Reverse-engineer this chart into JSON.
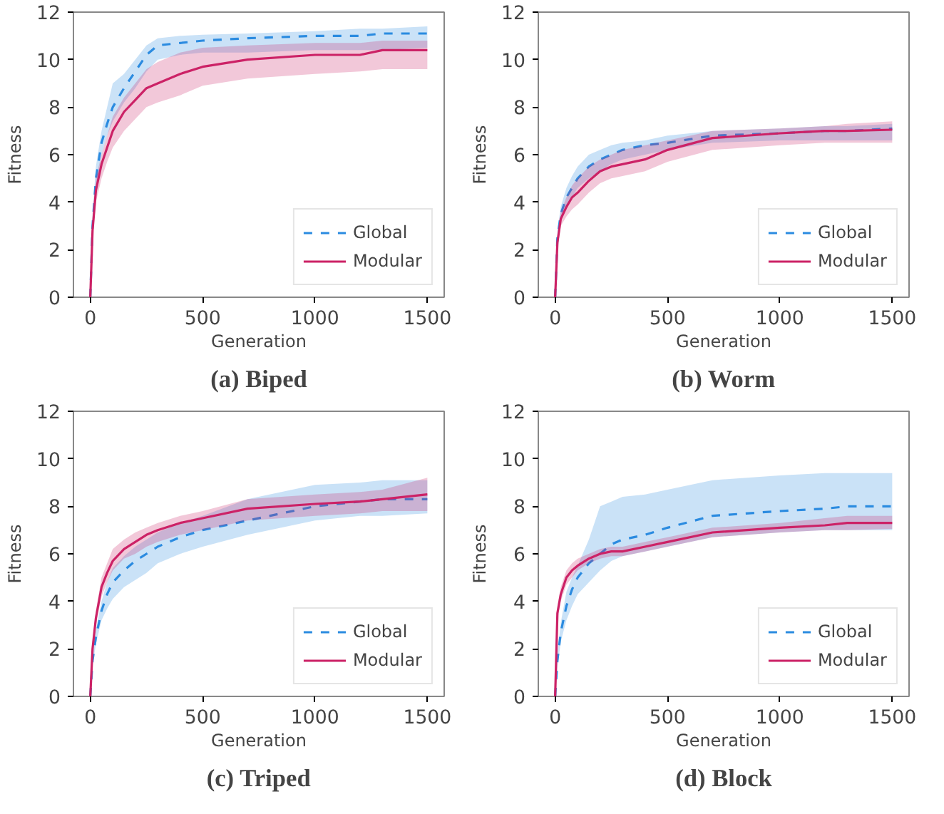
{
  "chart_data": [
    {
      "type": "line",
      "title": "(a) Biped",
      "xlabel": "Generation",
      "ylabel": "Fitness",
      "xlim": [
        -75,
        1575
      ],
      "ylim": [
        0,
        12
      ],
      "xticks": [
        0,
        500,
        1000,
        1500
      ],
      "yticks": [
        0,
        2,
        4,
        6,
        8,
        10,
        12
      ],
      "grid": false,
      "legend": "bottom right",
      "x": [
        0,
        10,
        25,
        50,
        75,
        100,
        150,
        200,
        250,
        300,
        400,
        500,
        700,
        1000,
        1200,
        1300,
        1500
      ],
      "series": [
        {
          "name": "Global",
          "color": "#2b8be0",
          "line_style": "dashed",
          "values": [
            0,
            3,
            5,
            6.5,
            7.3,
            8,
            8.8,
            9.5,
            10.2,
            10.6,
            10.7,
            10.8,
            10.9,
            11,
            11,
            11.1,
            11.1
          ],
          "lower": [
            0,
            2.5,
            4.5,
            6,
            6.8,
            7.4,
            8.2,
            8.8,
            9.5,
            10,
            10.2,
            10.3,
            10.3,
            10.4,
            10.4,
            10.4,
            10.5
          ],
          "upper": [
            0,
            3.5,
            5.5,
            7,
            8,
            9,
            9.4,
            10,
            10.6,
            10.9,
            11,
            11.05,
            11.1,
            11.2,
            11.3,
            11.3,
            11.4
          ]
        },
        {
          "name": "Modular",
          "color": "#cc2266",
          "line_style": "solid",
          "values": [
            0,
            2.8,
            4.5,
            5.6,
            6.3,
            7,
            7.8,
            8.3,
            8.8,
            9,
            9.4,
            9.7,
            10,
            10.2,
            10.2,
            10.4,
            10.4
          ],
          "lower": [
            0,
            2.5,
            4,
            5,
            5.7,
            6.3,
            7,
            7.5,
            8,
            8.2,
            8.5,
            8.9,
            9.2,
            9.4,
            9.5,
            9.6,
            9.6
          ],
          "upper": [
            0,
            3,
            5,
            6,
            6.8,
            7.6,
            8.4,
            9,
            9.6,
            9.9,
            10.3,
            10.5,
            10.6,
            10.7,
            10.7,
            10.8,
            10.8
          ]
        }
      ]
    },
    {
      "type": "line",
      "title": "(b) Worm",
      "xlabel": "Generation",
      "ylabel": "Fitness",
      "xlim": [
        -75,
        1575
      ],
      "ylim": [
        0,
        12
      ],
      "xticks": [
        0,
        500,
        1000,
        1500
      ],
      "yticks": [
        0,
        2,
        4,
        6,
        8,
        10,
        12
      ],
      "grid": false,
      "legend": "bottom right",
      "x": [
        0,
        10,
        25,
        50,
        75,
        100,
        150,
        200,
        250,
        300,
        400,
        500,
        700,
        1000,
        1200,
        1300,
        1500
      ],
      "series": [
        {
          "name": "Global",
          "color": "#2b8be0",
          "line_style": "dashed",
          "values": [
            0,
            2.5,
            3.5,
            4.2,
            4.6,
            5,
            5.5,
            5.8,
            6,
            6.2,
            6.4,
            6.5,
            6.8,
            6.9,
            7,
            7,
            7.1
          ],
          "lower": [
            0,
            2.3,
            3.2,
            3.8,
            4.2,
            4.6,
            5,
            5.3,
            5.6,
            5.8,
            6,
            6.2,
            6.5,
            6.6,
            6.6,
            6.6,
            6.6
          ],
          "upper": [
            0,
            2.8,
            3.8,
            4.6,
            5.1,
            5.5,
            6,
            6.2,
            6.4,
            6.5,
            6.6,
            6.8,
            7,
            7.1,
            7.2,
            7.2,
            7.3
          ]
        },
        {
          "name": "Modular",
          "color": "#cc2266",
          "line_style": "solid",
          "values": [
            0,
            2.3,
            3.3,
            3.8,
            4.2,
            4.4,
            4.9,
            5.3,
            5.5,
            5.6,
            5.8,
            6.2,
            6.7,
            6.9,
            7,
            7,
            7.05
          ],
          "lower": [
            0,
            2,
            3,
            3.4,
            3.7,
            3.9,
            4.4,
            4.8,
            5,
            5.1,
            5.3,
            5.7,
            6.2,
            6.4,
            6.5,
            6.5,
            6.5
          ],
          "upper": [
            0,
            2.5,
            3.6,
            4.2,
            4.7,
            5,
            5.5,
            5.8,
            6,
            6.2,
            6.4,
            6.6,
            7,
            7.1,
            7.2,
            7.3,
            7.4
          ]
        }
      ]
    },
    {
      "type": "line",
      "title": "(c) Triped",
      "xlabel": "Generation",
      "ylabel": "Fitness",
      "xlim": [
        -75,
        1575
      ],
      "ylim": [
        0,
        12
      ],
      "xticks": [
        0,
        500,
        1000,
        1500
      ],
      "yticks": [
        0,
        2,
        4,
        6,
        8,
        10,
        12
      ],
      "grid": false,
      "legend": "bottom right",
      "x": [
        0,
        10,
        25,
        50,
        75,
        100,
        150,
        200,
        250,
        300,
        400,
        500,
        700,
        1000,
        1200,
        1300,
        1500
      ],
      "series": [
        {
          "name": "Global",
          "color": "#2b8be0",
          "line_style": "dashed",
          "values": [
            0,
            1.5,
            2.5,
            3.6,
            4.3,
            4.8,
            5.3,
            5.7,
            6,
            6.3,
            6.7,
            7,
            7.4,
            8,
            8.2,
            8.3,
            8.3
          ],
          "lower": [
            0,
            1.3,
            2.2,
            3.2,
            3.7,
            4.1,
            4.6,
            4.9,
            5.2,
            5.6,
            6,
            6.3,
            6.8,
            7.4,
            7.6,
            7.6,
            7.7
          ],
          "upper": [
            0,
            1.8,
            2.8,
            4,
            4.8,
            5.4,
            5.9,
            6.3,
            6.6,
            6.9,
            7.3,
            7.6,
            8.3,
            8.9,
            9,
            9.1,
            9.1
          ]
        },
        {
          "name": "Modular",
          "color": "#cc2266",
          "line_style": "solid",
          "values": [
            0,
            2,
            3.3,
            4.6,
            5.2,
            5.7,
            6.2,
            6.5,
            6.8,
            7,
            7.3,
            7.5,
            7.9,
            8.1,
            8.2,
            8.3,
            8.5
          ],
          "lower": [
            0,
            1.7,
            3,
            4.2,
            4.8,
            5.3,
            5.8,
            6,
            6.3,
            6.5,
            6.8,
            7,
            7.4,
            7.6,
            7.7,
            7.8,
            7.8
          ],
          "upper": [
            0,
            2.3,
            3.6,
            5,
            5.6,
            6.2,
            6.6,
            6.9,
            7.1,
            7.3,
            7.6,
            7.8,
            8.3,
            8.5,
            8.6,
            8.7,
            9.2
          ]
        }
      ]
    },
    {
      "type": "line",
      "title": "(d) Block",
      "xlabel": "Generation",
      "ylabel": "Fitness",
      "xlim": [
        -75,
        1575
      ],
      "ylim": [
        0,
        12
      ],
      "xticks": [
        0,
        500,
        1000,
        1500
      ],
      "yticks": [
        0,
        2,
        4,
        6,
        8,
        10,
        12
      ],
      "grid": false,
      "legend": "bottom right",
      "x": [
        0,
        10,
        25,
        50,
        75,
        100,
        150,
        200,
        250,
        300,
        400,
        500,
        700,
        1000,
        1200,
        1300,
        1500
      ],
      "series": [
        {
          "name": "Global",
          "color": "#2b8be0",
          "line_style": "dashed",
          "values": [
            0,
            1.5,
            2.7,
            3.8,
            4.5,
            5,
            5.6,
            6,
            6.4,
            6.6,
            6.8,
            7.1,
            7.6,
            7.8,
            7.9,
            8,
            8
          ],
          "lower": [
            0,
            1.2,
            2.3,
            3.2,
            3.8,
            4.3,
            4.8,
            5.3,
            5.7,
            5.9,
            6.1,
            6.3,
            6.7,
            6.9,
            7,
            7,
            7
          ],
          "upper": [
            0,
            1.8,
            3.1,
            4.4,
            5,
            5.5,
            6.6,
            8,
            8.2,
            8.4,
            8.5,
            8.7,
            9.1,
            9.3,
            9.4,
            9.4,
            9.4
          ]
        },
        {
          "name": "Modular",
          "color": "#cc2266",
          "line_style": "solid",
          "values": [
            0,
            3.5,
            4.3,
            5,
            5.3,
            5.5,
            5.8,
            6,
            6.1,
            6.1,
            6.3,
            6.5,
            6.9,
            7.1,
            7.2,
            7.3,
            7.3
          ],
          "lower": [
            0,
            3.2,
            4,
            4.7,
            5,
            5.3,
            5.6,
            5.8,
            5.9,
            5.9,
            6.1,
            6.3,
            6.7,
            6.9,
            7,
            7,
            7.05
          ],
          "upper": [
            0,
            3.8,
            4.6,
            5.3,
            5.6,
            5.8,
            6,
            6.2,
            6.3,
            6.3,
            6.5,
            6.7,
            7.1,
            7.3,
            7.5,
            7.6,
            7.6
          ]
        }
      ]
    }
  ]
}
